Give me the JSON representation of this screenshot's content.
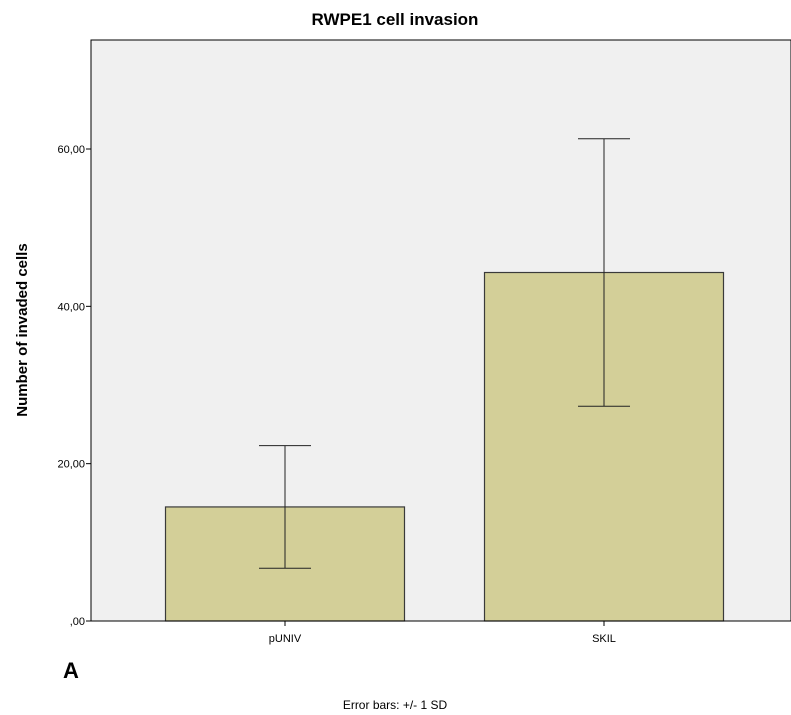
{
  "chart_data": {
    "type": "bar",
    "title": "RWPE1 cell invasion",
    "ylabel": "Number of invaded cells",
    "xlabel": "",
    "categories": [
      "pUNIV",
      "SKIL"
    ],
    "values": [
      14.5,
      44.3
    ],
    "error_sd": [
      7.8,
      17.0
    ],
    "ylim": [
      0,
      60.0
    ],
    "yticks": [
      0,
      20,
      40,
      60
    ],
    "ytick_labels": [
      ",00",
      "20,00",
      "40,00",
      "60,00"
    ],
    "grid": false,
    "colors": {
      "bar": "#d3cf98",
      "bar_stroke": "#3a3a3a",
      "plot_bg": "#f0f0f0"
    }
  },
  "panel_label": "A",
  "footnote": "Error bars: +/- 1 SD"
}
